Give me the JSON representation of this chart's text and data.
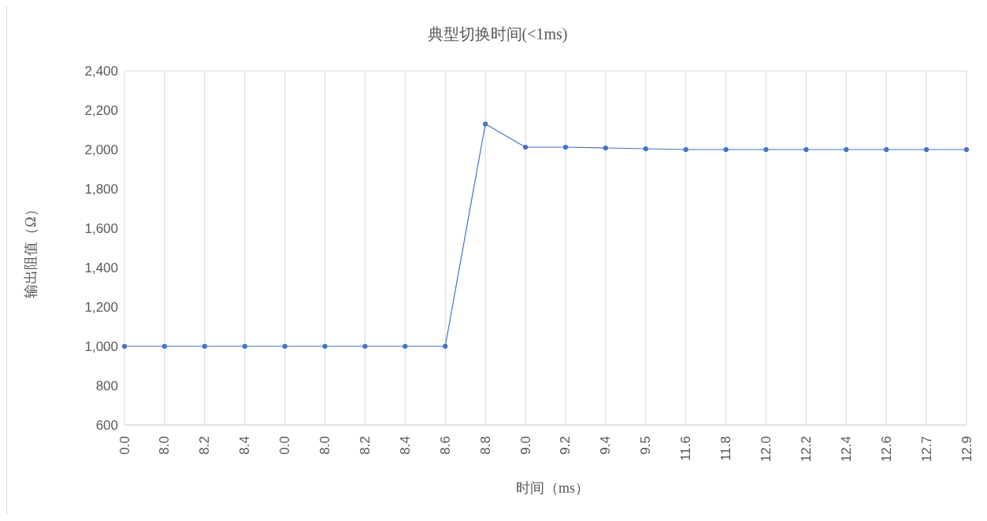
{
  "chart_data": {
    "type": "line",
    "title": "典型切换时间(<1ms)",
    "xlabel": "时间（ms）",
    "ylabel": "输出阻值（Ω）",
    "categories": [
      "0.0",
      "8.0",
      "8.2",
      "8.4",
      "0.0",
      "8.0",
      "8.2",
      "8.4",
      "8.6",
      "8.8",
      "9.0",
      "9.2",
      "9.4",
      "9.5",
      "11.6",
      "11.8",
      "12.0",
      "12.2",
      "12.4",
      "12.6",
      "12.7",
      "12.9"
    ],
    "series": [
      {
        "color": "#4472c4",
        "values": [
          1000,
          1000,
          1000,
          1000,
          1000,
          1000,
          1000,
          1000,
          1000,
          2130,
          2012,
          2012,
          2008,
          2004,
          2000,
          2000,
          2000,
          2000,
          2000,
          2000,
          2000,
          2000
        ]
      }
    ],
    "ylim": [
      600,
      2400
    ],
    "yticks": [
      {
        "value": 600,
        "label": "600"
      },
      {
        "value": 800,
        "label": "800"
      },
      {
        "value": 1000,
        "label": "1,000"
      },
      {
        "value": 1200,
        "label": "1,200"
      },
      {
        "value": 1400,
        "label": "1,400"
      },
      {
        "value": 1600,
        "label": "1,600"
      },
      {
        "value": 1800,
        "label": "1,800"
      },
      {
        "value": 2000,
        "label": "2,000"
      },
      {
        "value": 2200,
        "label": "2,200"
      },
      {
        "value": 2400,
        "label": "2,400"
      }
    ],
    "grid": true,
    "marker": "circle",
    "line_style": "solid",
    "legend": false
  }
}
